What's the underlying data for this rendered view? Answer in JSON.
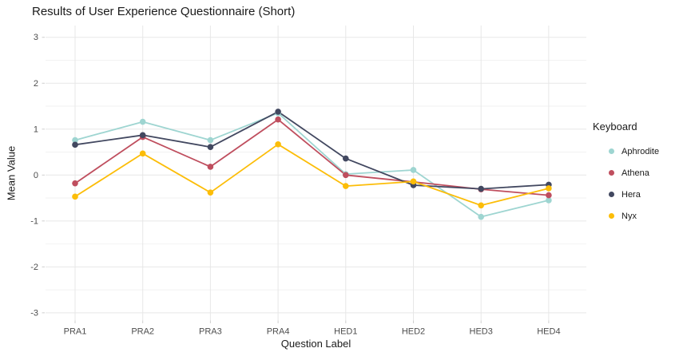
{
  "chart_data": {
    "type": "line",
    "title": "Results of User Experience Questionnaire (Short)",
    "xlabel": "Question Label",
    "ylabel": "Mean Value",
    "legend_title": "Keyboard",
    "legend_position": "right",
    "grid": true,
    "categories": [
      "PRA1",
      "PRA2",
      "PRA3",
      "PRA4",
      "HED1",
      "HED2",
      "HED3",
      "HED4"
    ],
    "yticks": [
      3,
      2,
      1,
      0,
      -1,
      -2,
      -3
    ],
    "ylim": [
      -3.2,
      3.2
    ],
    "series": [
      {
        "name": "Aphrodite",
        "color": "#9ed5d1",
        "values": [
          0.76,
          1.16,
          0.76,
          1.35,
          0.02,
          0.11,
          -0.91,
          -0.55
        ]
      },
      {
        "name": "Athena",
        "color": "#bf4e5e",
        "values": [
          -0.18,
          0.83,
          0.18,
          1.21,
          0.0,
          -0.15,
          -0.31,
          -0.44
        ]
      },
      {
        "name": "Hera",
        "color": "#424860",
        "values": [
          0.66,
          0.87,
          0.61,
          1.38,
          0.36,
          -0.22,
          -0.3,
          -0.21
        ]
      },
      {
        "name": "Nyx",
        "color": "#fcbd08",
        "values": [
          -0.47,
          0.47,
          -0.38,
          0.67,
          -0.24,
          -0.14,
          -0.66,
          -0.29
        ]
      }
    ]
  },
  "colors": {
    "major_grid": "#e7e7e7",
    "minor_grid": "#f2f2f2",
    "tick_mark": "#cfcfcf",
    "axis_text": "#4d4d4d",
    "title_text": "#1a1a1a"
  }
}
